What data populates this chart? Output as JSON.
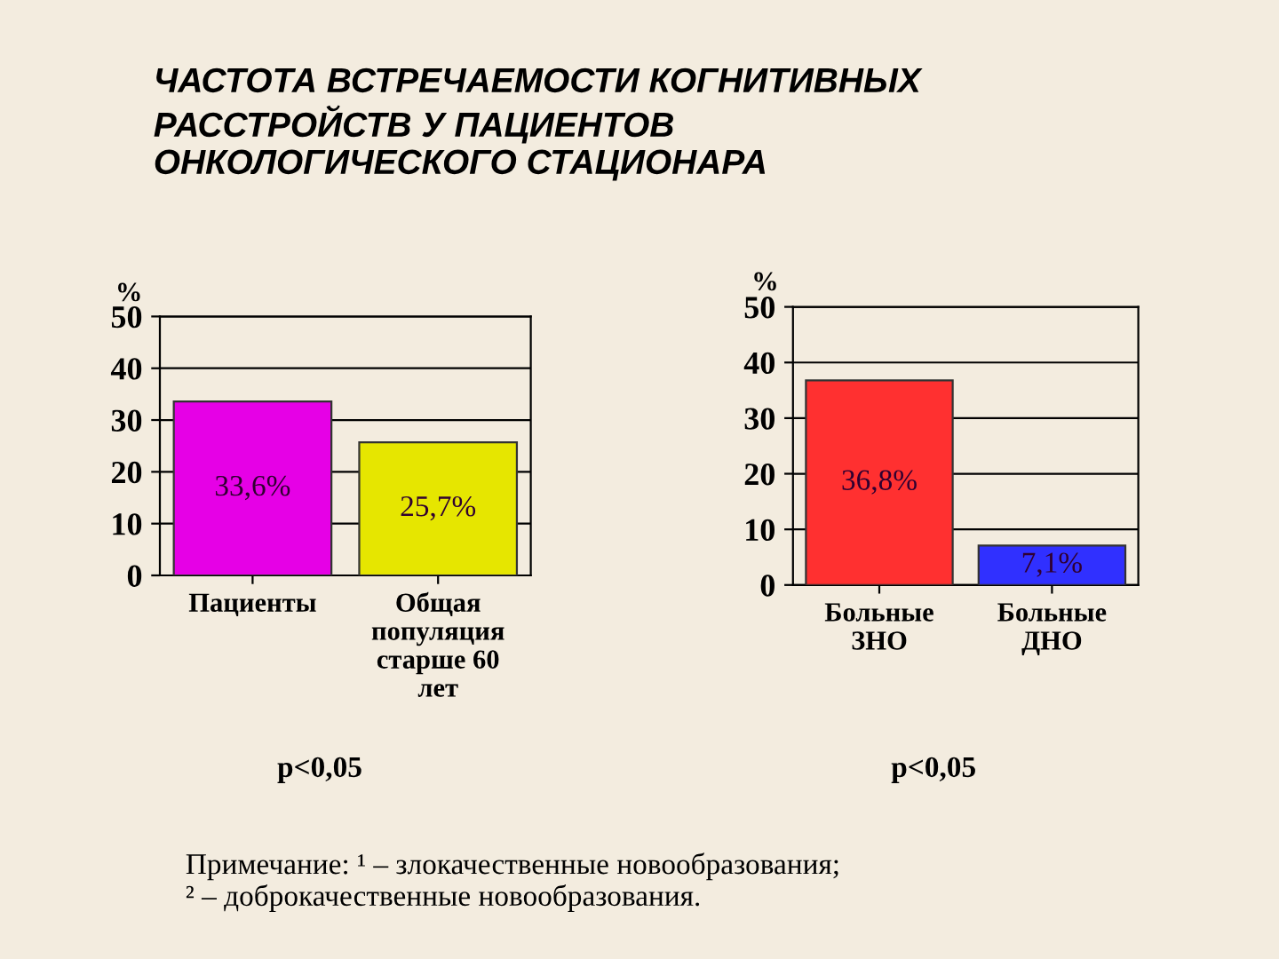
{
  "chart_data": [
    {
      "type": "bar",
      "title": "ЧАСТОТА ВСТРЕЧАЕМОСТИ КОГНИТИВНЫХ\nРАССТРОЙСТВ У ПАЦИЕНТОВ\nОНКОЛОГИЧЕСКОГО СТАЦИОНАРА",
      "ylabel": "%",
      "categories": [
        "Пациенты",
        "Общая\nпопуляция\nстарше 60\nлет"
      ],
      "values": [
        33.6,
        25.7
      ],
      "colors": [
        "#e600e6",
        "#e6e600"
      ],
      "value_labels": [
        "33,6%",
        "25,7%"
      ],
      "ylim": [
        0,
        50
      ],
      "yticks": [
        0,
        10,
        20,
        30,
        40,
        50
      ],
      "grid": "y",
      "annotations": [
        "p<0,05"
      ]
    },
    {
      "type": "bar",
      "ylabel": "%",
      "categories": [
        "Больные\nЗНО",
        "Больные\nДНО"
      ],
      "values": [
        36.8,
        7.1
      ],
      "colors": [
        "#ff3030",
        "#3030ff"
      ],
      "value_labels": [
        "36,8%",
        "7,1%"
      ],
      "ylim": [
        0,
        50
      ],
      "yticks": [
        0,
        10,
        20,
        30,
        40,
        50
      ],
      "grid": "y",
      "annotations": [
        "p<0,05",
        "Примечание: ¹ – злокачественные новообразования;\n² – доброкачественные новообразования."
      ]
    }
  ]
}
